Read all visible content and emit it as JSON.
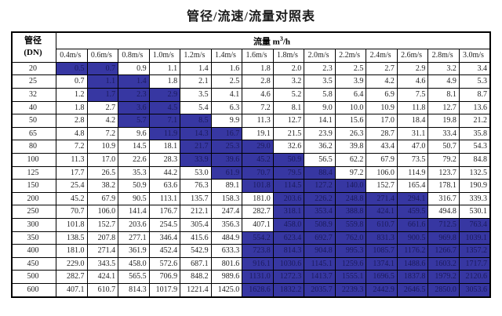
{
  "title": "管径/流速/流量对照表",
  "colors": {
    "highlight_background": "#3737a2",
    "highlight_text": "#1b1b5e",
    "border": "#000000",
    "text": "#1f1f1f",
    "page_background": "#ffffff"
  },
  "table": {
    "corner_header_line1": "管径",
    "corner_header_line2": "(DN)",
    "flow_header_prefix": "流量 m",
    "flow_header_superscript": "3",
    "flow_header_suffix": "/h",
    "velocity_columns": [
      "0.4m/s",
      "0.6m/s",
      "0.8m/s",
      "1.0m/s",
      "1.2m/s",
      "1.4m/s",
      "1.6m/s",
      "1.8m/s",
      "2.0m/s",
      "2.2m/s",
      "2.4m/s",
      "2.6m/s",
      "2.8m/s",
      "3.0m/s"
    ],
    "rows": [
      {
        "dn": "20",
        "values": [
          0.5,
          0.7,
          0.9,
          1.1,
          1.4,
          1.6,
          1.8,
          2.0,
          2.3,
          2.5,
          2.7,
          2.9,
          3.2,
          3.4
        ],
        "highlight": [
          0,
          1
        ]
      },
      {
        "dn": "25",
        "values": [
          0.7,
          1.1,
          1.4,
          1.8,
          2.1,
          2.5,
          2.8,
          3.2,
          3.5,
          3.9,
          4.2,
          4.6,
          4.9,
          5.3
        ],
        "highlight": [
          1,
          2
        ]
      },
      {
        "dn": "32",
        "values": [
          1.2,
          1.7,
          2.3,
          2.9,
          3.5,
          4.1,
          4.6,
          5.2,
          5.8,
          6.4,
          6.9,
          7.5,
          8.1,
          8.7
        ],
        "highlight": [
          1,
          2,
          3
        ]
      },
      {
        "dn": "40",
        "values": [
          1.8,
          2.7,
          3.6,
          4.5,
          5.4,
          6.3,
          7.2,
          8.1,
          9.0,
          10.0,
          10.9,
          11.8,
          12.7,
          13.6
        ],
        "highlight": [
          2,
          3
        ]
      },
      {
        "dn": "50",
        "values": [
          2.8,
          4.2,
          5.7,
          7.1,
          8.5,
          9.9,
          11.3,
          12.7,
          14.1,
          15.6,
          17.0,
          18.4,
          19.8,
          21.2
        ],
        "highlight": [
          2,
          3,
          4
        ]
      },
      {
        "dn": "65",
        "values": [
          4.8,
          7.2,
          9.6,
          11.9,
          14.3,
          16.7,
          19.1,
          21.5,
          23.9,
          26.3,
          28.7,
          31.1,
          33.4,
          35.8
        ],
        "highlight": [
          3,
          4,
          5
        ]
      },
      {
        "dn": "80",
        "values": [
          7.2,
          10.9,
          14.5,
          18.1,
          21.7,
          25.3,
          29.0,
          32.6,
          36.2,
          39.8,
          43.4,
          47.0,
          50.7,
          54.3
        ],
        "highlight": [
          4,
          5,
          6
        ]
      },
      {
        "dn": "100",
        "values": [
          11.3,
          17.0,
          22.6,
          28.3,
          33.9,
          39.6,
          45.2,
          50.9,
          56.5,
          62.2,
          67.9,
          73.5,
          79.2,
          84.8
        ],
        "highlight": [
          4,
          5,
          6,
          7
        ]
      },
      {
        "dn": "125",
        "values": [
          17.7,
          26.5,
          35.3,
          44.2,
          53.0,
          61.9,
          70.7,
          79.5,
          88.4,
          97.2,
          106.0,
          114.9,
          123.7,
          132.5
        ],
        "highlight": [
          5,
          6,
          7,
          8
        ]
      },
      {
        "dn": "150",
        "values": [
          25.4,
          38.2,
          50.9,
          63.6,
          76.3,
          89.1,
          101.8,
          114.5,
          127.2,
          140.0,
          152.7,
          165.4,
          178.1,
          190.9
        ],
        "highlight": [
          6,
          7,
          8,
          9
        ]
      },
      {
        "dn": "200",
        "values": [
          45.2,
          67.9,
          90.5,
          113.1,
          135.7,
          158.3,
          181.0,
          203.6,
          226.2,
          248.8,
          271.4,
          294.1,
          316.7,
          339.3
        ],
        "highlight": [
          7,
          8,
          9,
          10,
          11
        ]
      },
      {
        "dn": "250",
        "values": [
          70.7,
          106.0,
          141.4,
          176.7,
          212.1,
          247.4,
          282.7,
          318.1,
          353.4,
          388.8,
          424.1,
          459.5,
          494.8,
          530.1
        ],
        "highlight": [
          7,
          8,
          9,
          10,
          11
        ]
      },
      {
        "dn": "300",
        "values": [
          101.8,
          152.7,
          203.6,
          254.5,
          305.4,
          356.3,
          407.1,
          458.0,
          508.9,
          559.8,
          610.7,
          661.6,
          712.5,
          763.4
        ],
        "highlight": [
          7,
          8,
          9,
          10,
          11,
          12,
          13
        ]
      },
      {
        "dn": "350",
        "values": [
          138.5,
          207.8,
          277.1,
          346.4,
          415.6,
          484.9,
          554.2,
          623.4,
          692.7,
          762.0,
          831.3,
          900.5,
          969.8,
          1039.1
        ],
        "highlight": [
          6,
          7,
          8,
          9,
          10,
          11,
          12,
          13
        ]
      },
      {
        "dn": "400",
        "values": [
          181.0,
          271.4,
          361.9,
          452.4,
          542.9,
          633.3,
          723.8,
          814.3,
          904.8,
          995.3,
          1085.7,
          1176.2,
          1266.7,
          1357.2
        ],
        "highlight": [
          6,
          7,
          8,
          9,
          10,
          11,
          12,
          13
        ]
      },
      {
        "dn": "450",
        "values": [
          229.0,
          343.5,
          458.0,
          572.6,
          687.1,
          801.6,
          916.1,
          1030.6,
          1145.1,
          1259.6,
          1374.1,
          1488.6,
          1603.2,
          1717.7
        ],
        "highlight": [
          6,
          7,
          8,
          9,
          10,
          11,
          12,
          13
        ]
      },
      {
        "dn": "500",
        "values": [
          282.7,
          424.1,
          565.5,
          706.9,
          848.2,
          989.6,
          1131.0,
          1272.3,
          1413.7,
          1555.1,
          1696.5,
          1837.8,
          1979.2,
          2120.6
        ],
        "highlight": [
          6,
          7,
          8,
          9,
          10,
          11,
          12,
          13
        ]
      },
      {
        "dn": "600",
        "values": [
          407.1,
          610.7,
          814.3,
          1017.9,
          1221.4,
          1425.0,
          1628.6,
          1832.2,
          2035.7,
          2239.3,
          2442.9,
          2646.5,
          2850.0,
          3053.6
        ],
        "highlight": [
          6,
          7,
          8,
          9,
          10,
          11,
          12,
          13
        ]
      }
    ]
  },
  "chart_data": {
    "type": "table",
    "title": "管径/流速/流量对照表",
    "row_header": "管径(DN)",
    "column_group_header": "流量 m3/h",
    "columns": [
      "0.4m/s",
      "0.6m/s",
      "0.8m/s",
      "1.0m/s",
      "1.2m/s",
      "1.4m/s",
      "1.6m/s",
      "1.8m/s",
      "2.0m/s",
      "2.2m/s",
      "2.4m/s",
      "2.6m/s",
      "2.8m/s",
      "3.0m/s"
    ],
    "row_labels": [
      "20",
      "25",
      "32",
      "40",
      "50",
      "65",
      "80",
      "100",
      "125",
      "150",
      "200",
      "250",
      "300",
      "350",
      "400",
      "450",
      "500",
      "600"
    ]
  }
}
